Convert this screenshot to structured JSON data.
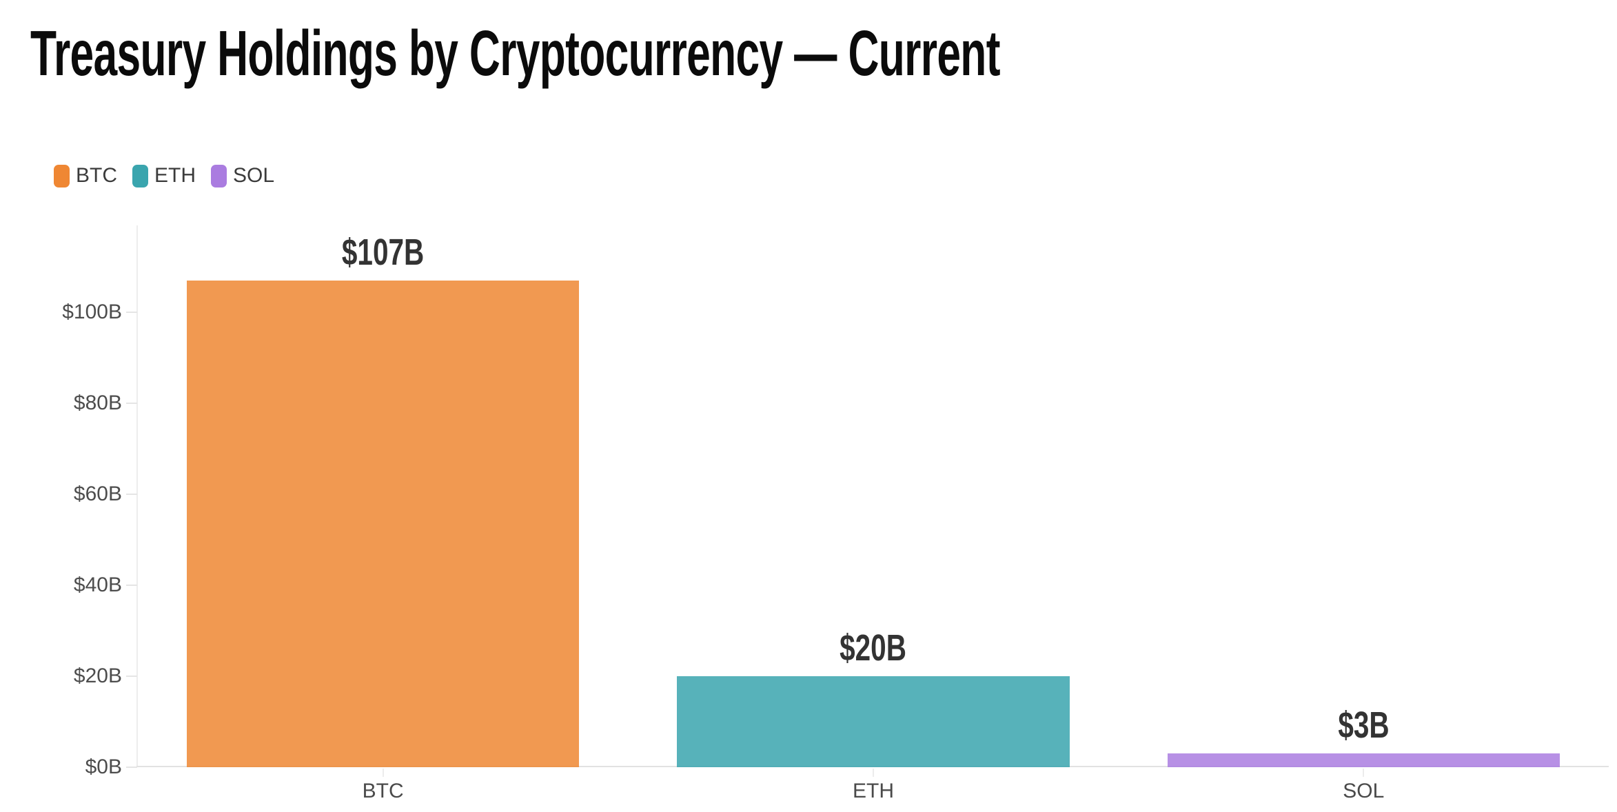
{
  "header": {
    "title": "Treasury Holdings by Cryptocurrency — Current"
  },
  "legend": {
    "items": [
      {
        "label": "BTC",
        "color": "#ef8733"
      },
      {
        "label": "ETH",
        "color": "#3aa5ae"
      },
      {
        "label": "SOL",
        "color": "#aa7ce0"
      }
    ]
  },
  "chart_data": {
    "type": "bar",
    "title": "Treasury Holdings by Cryptocurrency — Current",
    "categories": [
      "BTC",
      "ETH",
      "SOL"
    ],
    "values": [
      107,
      20,
      3
    ],
    "value_labels": [
      "$107B",
      "$20B",
      "$3B"
    ],
    "series_colors": [
      "#ef8733",
      "#3aa5ae",
      "#aa7ce0"
    ],
    "bar_fill_opacity": 0.85,
    "xlabel": "",
    "ylabel": "",
    "ylim": [
      0,
      119
    ],
    "yticks": [
      0,
      20,
      40,
      60,
      80,
      100
    ],
    "ytick_labels": [
      "$0B",
      "$20B",
      "$40B",
      "$60B",
      "$80B",
      "$100B"
    ],
    "grid": false,
    "legend_position": "top-left",
    "colors": {
      "title": "#0b0b0b",
      "axis_line": "#ededed",
      "baseline": "#e2e2e2",
      "tick_label": "#4d4d4d",
      "category_label": "#4a4a4a",
      "value_label": "#333333",
      "background": "#ffffff"
    }
  }
}
